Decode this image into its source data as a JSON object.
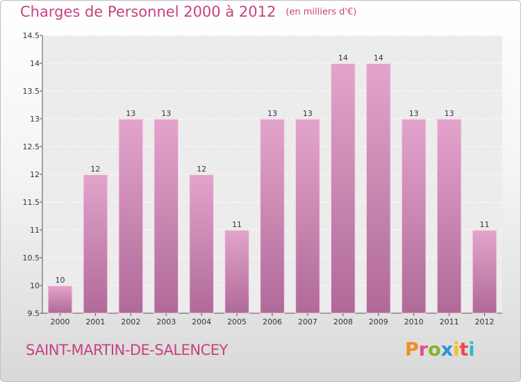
{
  "header": {
    "title": "Charges de Personnel 2000 à 2012",
    "unit": "(en milliers d'€)"
  },
  "footer": {
    "place": "SAINT-MARTIN-DE-SALENCEY",
    "logo": "Proxiti",
    "logo_colors": [
      "#f28c1e",
      "#e84a8f",
      "#7ab929",
      "#2f8fd6",
      "#f2c31e",
      "#e84a4a",
      "#2fb6d6"
    ]
  },
  "colors": {
    "accent": "#c8427e",
    "bar_top": "#e3a4cc",
    "bar_bottom": "#b06a98"
  },
  "chart_data": {
    "type": "bar",
    "categories": [
      "2000",
      "2001",
      "2002",
      "2003",
      "2004",
      "2005",
      "2006",
      "2007",
      "2008",
      "2009",
      "2010",
      "2011",
      "2012"
    ],
    "values": [
      10,
      12,
      13,
      13,
      12,
      11,
      13,
      13,
      14,
      14,
      13,
      13,
      11
    ],
    "data_labels": [
      "10",
      "12",
      "13",
      "13",
      "12",
      "11",
      "13",
      "13",
      "14",
      "14",
      "13",
      "13",
      "11"
    ],
    "title": "Charges de Personnel 2000 à 2012",
    "ylim": [
      9.5,
      14.5
    ],
    "yticks": [
      9.5,
      10,
      10.5,
      11,
      11.5,
      12,
      12.5,
      13,
      13.5,
      14,
      14.5
    ],
    "ytick_labels": [
      "9.5",
      "10",
      "10.5",
      "11",
      "11.5",
      "12",
      "12.5",
      "13",
      "13.5",
      "14",
      "14.5"
    ],
    "grid": true,
    "legend": "none"
  }
}
